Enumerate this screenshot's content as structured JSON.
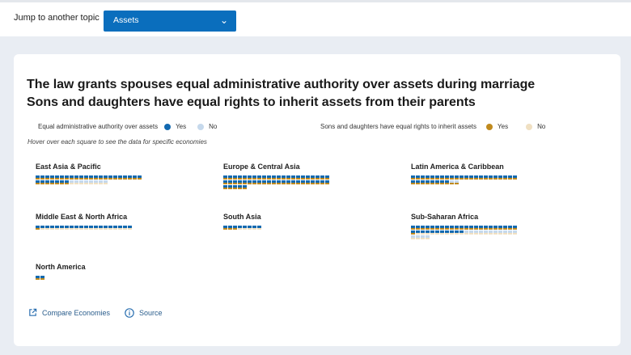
{
  "header": {
    "jump_label": "Jump to another topic",
    "select_value": "Assets"
  },
  "titles": {
    "line1": "The law grants spouses equal administrative authority over assets during marriage",
    "line2": "Sons and daughters have equal rights to inherit assets from their parents"
  },
  "legend": {
    "admin": {
      "label": "Equal administrative authority over assets",
      "yes": "Yes",
      "no": "No"
    },
    "inherit": {
      "label": "Sons and daughters have equal rights to inherit assets",
      "yes": "Yes",
      "no": "No"
    }
  },
  "hint": "Hover over each square to see the data for specific economies",
  "colors": {
    "admin_yes": "#1269b0",
    "admin_no": "#c6d9ec",
    "inherit_yes": "#c08a1e",
    "inherit_no": "#f0e0c2",
    "accent": "#0a6ebd"
  },
  "regions": [
    {
      "name": "East Asia & Pacific",
      "economies": 37,
      "admin_yes": 29,
      "inherit_yes": 29
    },
    {
      "name": "Europe & Central Asia",
      "economies": 49,
      "admin_yes": 49,
      "inherit_yes": 49
    },
    {
      "name": "Latin America & Caribbean",
      "economies": 32,
      "admin_yes": 30,
      "inherit_yes": 32
    },
    {
      "name": "Middle East & North Africa",
      "economies": 20,
      "admin_yes": 20,
      "inherit_yes": 1
    },
    {
      "name": "South Asia",
      "economies": 8,
      "admin_yes": 8,
      "inherit_yes": 3
    },
    {
      "name": "Sub-Saharan Africa",
      "economies": 48,
      "admin_yes": 33,
      "inherit_yes": 23
    },
    {
      "name": "North America",
      "economies": 2,
      "admin_yes": 2,
      "inherit_yes": 2
    }
  ],
  "links": {
    "compare": "Compare Economies",
    "source": "Source"
  }
}
